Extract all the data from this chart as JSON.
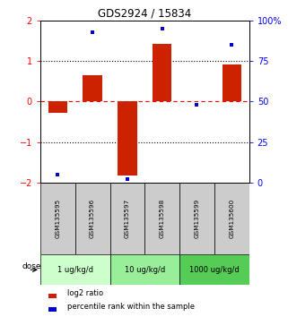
{
  "title": "GDS2924 / 15834",
  "samples": [
    "GSM135595",
    "GSM135596",
    "GSM135597",
    "GSM135598",
    "GSM135599",
    "GSM135600"
  ],
  "log2_ratio": [
    -0.28,
    0.65,
    -1.82,
    1.42,
    0.02,
    0.92
  ],
  "percentile_rank": [
    5,
    93,
    2,
    95,
    48,
    85
  ],
  "bar_color": "#cc2200",
  "dot_color": "#0000cc",
  "ylim_left": [
    -2,
    2
  ],
  "ylim_right": [
    0,
    100
  ],
  "yticks_left": [
    -2,
    -1,
    0,
    1,
    2
  ],
  "yticks_right": [
    0,
    25,
    50,
    75,
    100
  ],
  "ytick_labels_right": [
    "0",
    "25",
    "50",
    "75",
    "100%"
  ],
  "dose_groups": [
    {
      "label": "1 ug/kg/d",
      "indices": [
        0,
        1
      ],
      "color": "#ccffcc"
    },
    {
      "label": "10 ug/kg/d",
      "indices": [
        2,
        3
      ],
      "color": "#99ee99"
    },
    {
      "label": "1000 ug/kg/d",
      "indices": [
        4,
        5
      ],
      "color": "#55cc55"
    }
  ],
  "legend_items": [
    {
      "label": "log2 ratio",
      "color": "#cc2200"
    },
    {
      "label": "percentile rank within the sample",
      "color": "#0000cc"
    }
  ],
  "dose_label": "dose",
  "bar_width": 0.55,
  "sample_bg": "#cccccc"
}
